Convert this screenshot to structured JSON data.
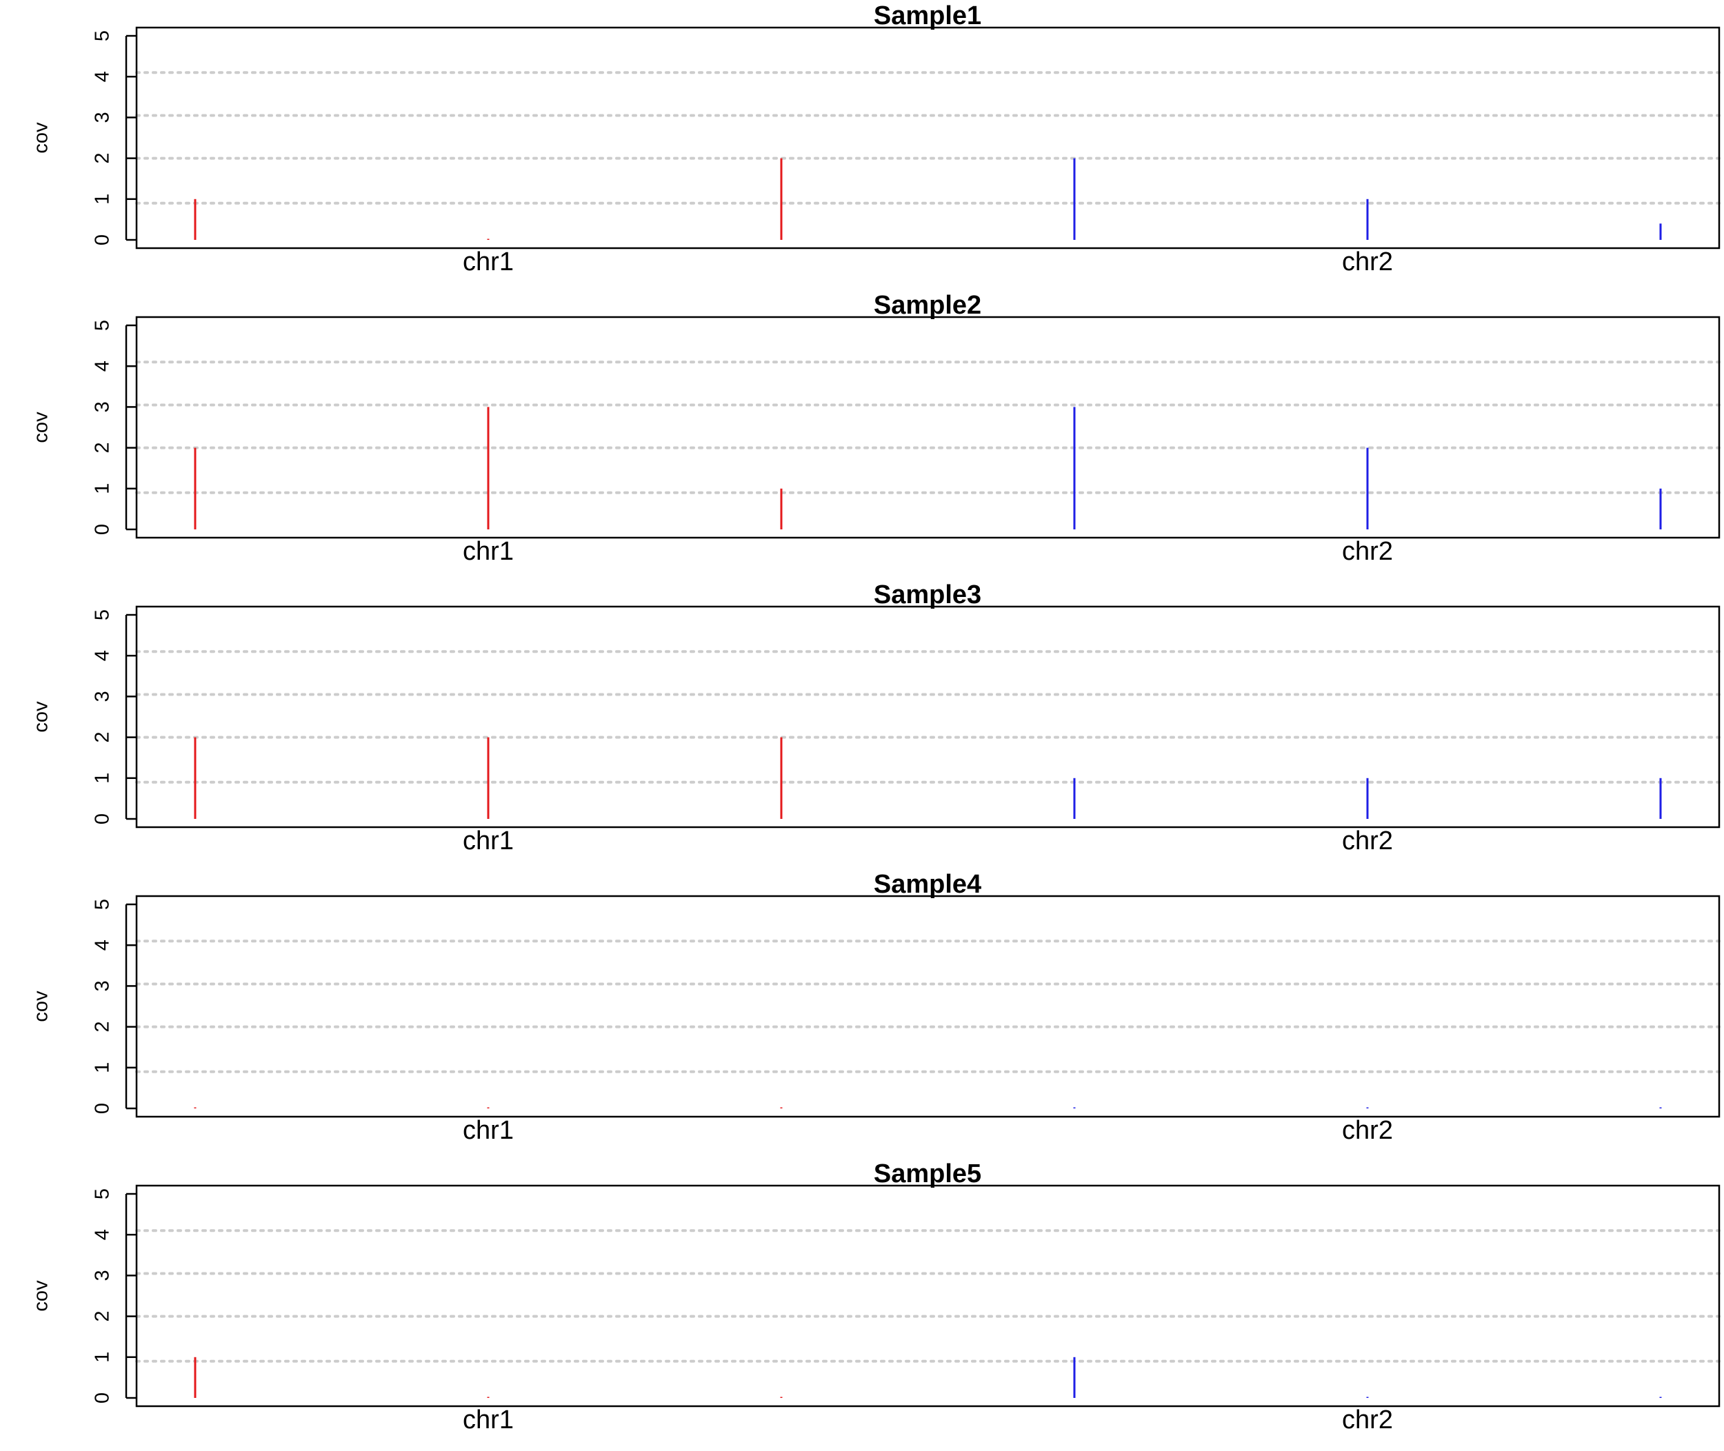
{
  "colors": {
    "chr1": "#e41a1c",
    "chr2": "#1f1fe6",
    "grid": "#cccccc",
    "frame": "#000000"
  },
  "chart_data": [
    {
      "type": "bar",
      "title": "Sample1",
      "ylabel": "cov",
      "ylim": [
        0,
        5
      ],
      "yticks": [
        0,
        1,
        2,
        3,
        4,
        5
      ],
      "gridlines_y": [
        0.9,
        2.0,
        3.05,
        4.1
      ],
      "group_labels": [
        "chr1",
        "chr2"
      ],
      "x": [
        1,
        2,
        3,
        4,
        5,
        6
      ],
      "groups": [
        "chr1",
        "chr1",
        "chr1",
        "chr2",
        "chr2",
        "chr2"
      ],
      "values": [
        1,
        0,
        2,
        2,
        1,
        0.4
      ]
    },
    {
      "type": "bar",
      "title": "Sample2",
      "ylabel": "cov",
      "ylim": [
        0,
        5
      ],
      "yticks": [
        0,
        1,
        2,
        3,
        4,
        5
      ],
      "gridlines_y": [
        0.9,
        2.0,
        3.05,
        4.1
      ],
      "group_labels": [
        "chr1",
        "chr2"
      ],
      "x": [
        1,
        2,
        3,
        4,
        5,
        6
      ],
      "groups": [
        "chr1",
        "chr1",
        "chr1",
        "chr2",
        "chr2",
        "chr2"
      ],
      "values": [
        2,
        3,
        1,
        3,
        2,
        1
      ]
    },
    {
      "type": "bar",
      "title": "Sample3",
      "ylabel": "cov",
      "ylim": [
        0,
        5
      ],
      "yticks": [
        0,
        1,
        2,
        3,
        4,
        5
      ],
      "gridlines_y": [
        0.9,
        2.0,
        3.05,
        4.1
      ],
      "group_labels": [
        "chr1",
        "chr2"
      ],
      "x": [
        1,
        2,
        3,
        4,
        5,
        6
      ],
      "groups": [
        "chr1",
        "chr1",
        "chr1",
        "chr2",
        "chr2",
        "chr2"
      ],
      "values": [
        2,
        2,
        2,
        1,
        1,
        1
      ]
    },
    {
      "type": "bar",
      "title": "Sample4",
      "ylabel": "cov",
      "ylim": [
        0,
        5
      ],
      "yticks": [
        0,
        1,
        2,
        3,
        4,
        5
      ],
      "gridlines_y": [
        0.9,
        2.0,
        3.05,
        4.1
      ],
      "group_labels": [
        "chr1",
        "chr2"
      ],
      "x": [
        1,
        2,
        3,
        4,
        5,
        6
      ],
      "groups": [
        "chr1",
        "chr1",
        "chr1",
        "chr2",
        "chr2",
        "chr2"
      ],
      "values": [
        0,
        0,
        0,
        0,
        0,
        0
      ]
    },
    {
      "type": "bar",
      "title": "Sample5",
      "ylabel": "cov",
      "ylim": [
        0,
        5
      ],
      "yticks": [
        0,
        1,
        2,
        3,
        4,
        5
      ],
      "gridlines_y": [
        0.9,
        2.0,
        3.05,
        4.1
      ],
      "group_labels": [
        "chr1",
        "chr2"
      ],
      "x": [
        1,
        2,
        3,
        4,
        5,
        6
      ],
      "groups": [
        "chr1",
        "chr1",
        "chr1",
        "chr2",
        "chr2",
        "chr2"
      ],
      "values": [
        1,
        0,
        0,
        1,
        0,
        0
      ]
    }
  ]
}
